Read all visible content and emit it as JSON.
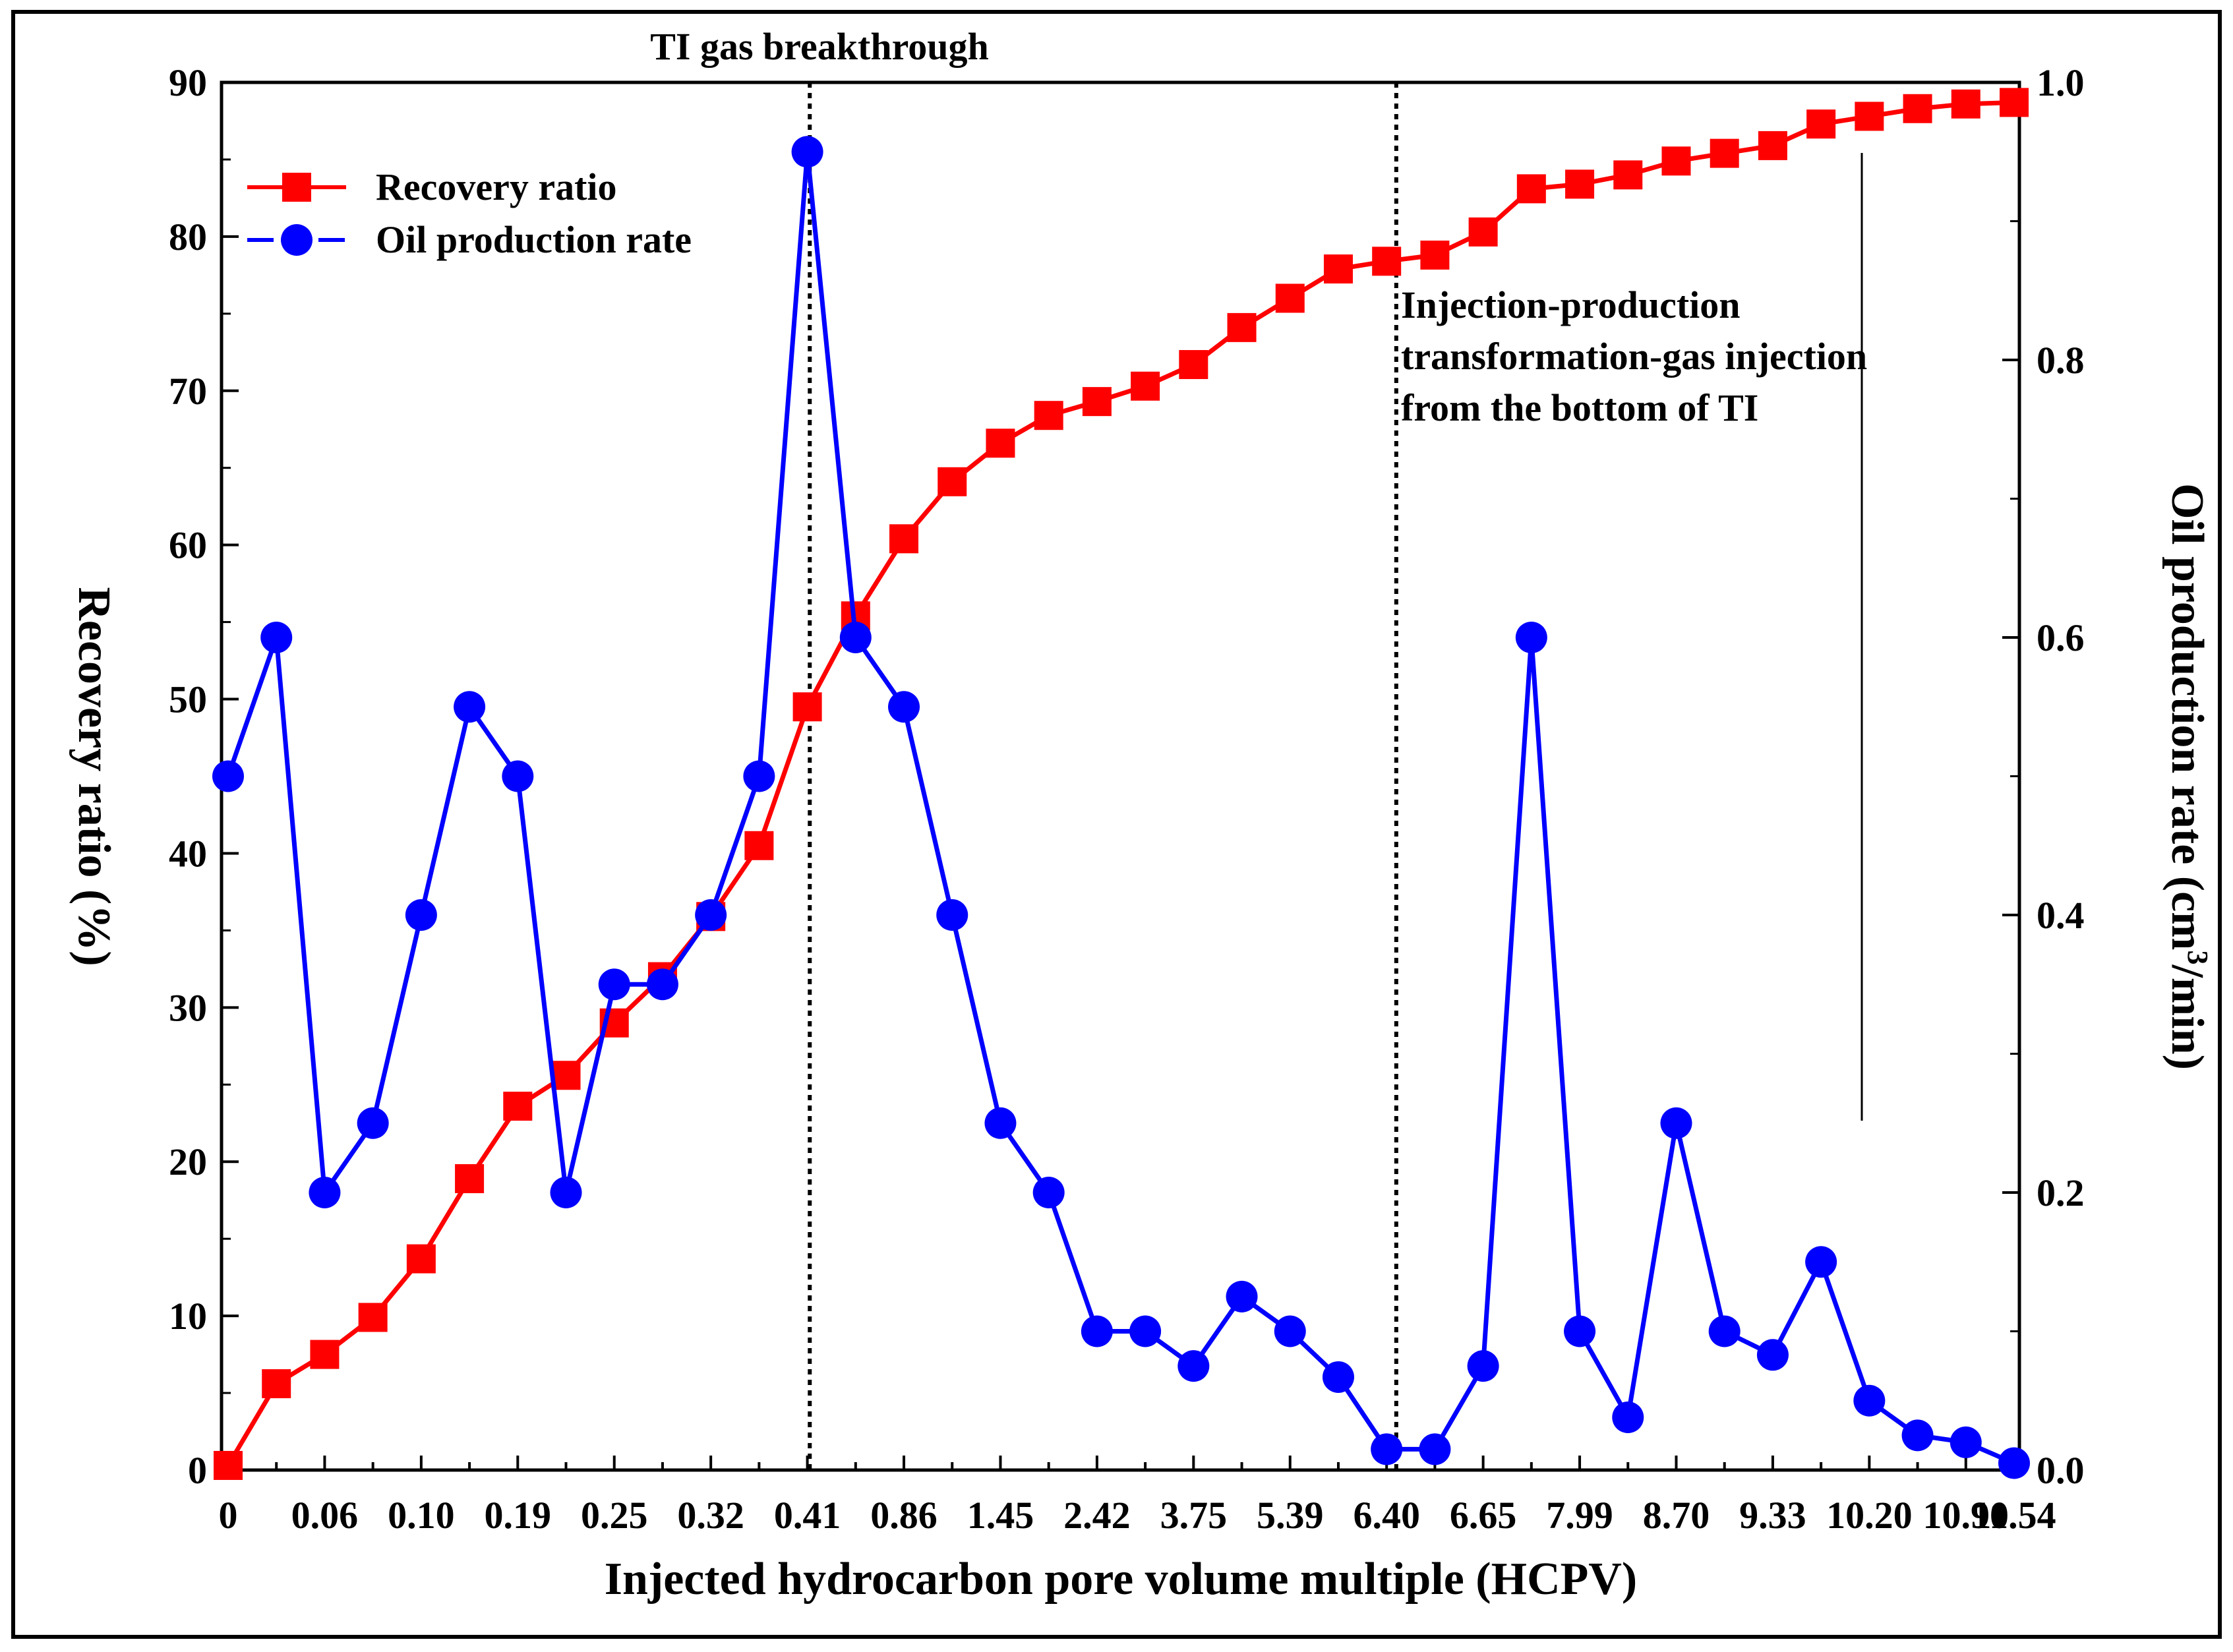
{
  "chart_data": {
    "type": "line",
    "xlabel": "Injected hydrocarbon pore volume multiple (HCPV)",
    "ylabel": "Recovery ratio (%)",
    "y2label_main": "Oil production rate (cm",
    "y2label_sup": "3",
    "y2label_tail": "/min)",
    "ylim": [
      0,
      90
    ],
    "y2lim": [
      0,
      1.0
    ],
    "yticks": [
      "0",
      "10",
      "20",
      "30",
      "40",
      "50",
      "60",
      "70",
      "80",
      "90"
    ],
    "y2ticks": [
      "0.0",
      "0.2",
      "0.4",
      "0.6",
      "0.8",
      "1.0"
    ],
    "xtick_labels": [
      "0",
      "0.06",
      "0.10",
      "0.19",
      "0.25",
      "0.32",
      "0.41",
      "0.86",
      "1.45",
      "2.42",
      "3.75",
      "5.39",
      "6.40",
      "6.65",
      "7.99",
      "8.70",
      "9.33",
      "10.20",
      "10.90",
      "11.54"
    ],
    "n_points": 38,
    "series": [
      {
        "name": "Recovery ratio",
        "axis": "left",
        "color": "#ff0000",
        "marker": "square",
        "values": [
          0.3,
          5.6,
          7.5,
          9.9,
          13.7,
          18.9,
          23.6,
          25.6,
          29.0,
          32.0,
          35.9,
          40.5,
          49.5,
          55.4,
          60.4,
          64.1,
          66.6,
          68.4,
          69.3,
          70.3,
          71.7,
          74.1,
          76.0,
          77.9,
          78.4,
          78.8,
          80.3,
          83.1,
          83.4,
          84.0,
          84.9,
          85.4,
          85.9,
          87.3,
          87.8,
          88.3,
          88.6,
          88.7
        ]
      },
      {
        "name": "Oil production rate",
        "axis": "right",
        "color": "#0000ff",
        "marker": "circle",
        "values": [
          0.5,
          0.6,
          0.2,
          0.25,
          0.4,
          0.55,
          0.5,
          0.2,
          0.35,
          0.35,
          0.4,
          0.5,
          0.95,
          0.6,
          0.55,
          0.4,
          0.25,
          0.2,
          0.1,
          0.1,
          0.075,
          0.125,
          0.1,
          0.067,
          0.015,
          0.015,
          0.075,
          0.6,
          0.1,
          0.038,
          0.25,
          0.1,
          0.083,
          0.15,
          0.05,
          0.025,
          0.02,
          0.005
        ]
      }
    ],
    "vlines": [
      12.05,
      24.2
    ],
    "annotations": {
      "breakthrough": "TI gas breakthrough",
      "transform_line1": "Injection-production",
      "transform_line2": "transformation-gas injection",
      "transform_line3": "from the bottom of TI"
    },
    "legend_position": "top-left"
  }
}
